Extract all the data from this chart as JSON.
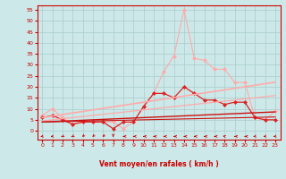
{
  "xlabel": "Vent moyen/en rafales ( km/h )",
  "bg_color": "#cce8e8",
  "grid_color": "#aacccc",
  "x_ticks": [
    0,
    1,
    2,
    3,
    4,
    5,
    6,
    7,
    8,
    9,
    10,
    11,
    12,
    13,
    14,
    15,
    16,
    17,
    18,
    19,
    20,
    21,
    22,
    23
  ],
  "ylim": [
    -4,
    57
  ],
  "yticks": [
    0,
    5,
    10,
    15,
    20,
    25,
    30,
    35,
    40,
    45,
    50,
    55
  ],
  "series": [
    {
      "color": "#ffaaaa",
      "linewidth": 0.8,
      "marker": "D",
      "markersize": 2.0,
      "values": [
        7,
        10,
        6,
        3,
        4,
        4,
        4,
        4,
        1,
        4,
        11,
        17,
        27,
        34,
        55,
        33,
        32,
        28,
        28,
        22,
        22,
        6,
        5,
        9
      ]
    },
    {
      "color": "#dd2222",
      "linewidth": 0.9,
      "marker": "D",
      "markersize": 2.0,
      "values": [
        6,
        7,
        5,
        3,
        4,
        4,
        4,
        1,
        4,
        4,
        11,
        17,
        17,
        15,
        20,
        17,
        14,
        14,
        12,
        13,
        13,
        6,
        5,
        5
      ]
    },
    {
      "color": "#ffaaaa",
      "linewidth": 1.2,
      "marker": null,
      "values": [
        6.0,
        6.7,
        7.4,
        8.1,
        8.8,
        9.5,
        10.2,
        10.9,
        11.6,
        12.3,
        13.0,
        13.7,
        14.4,
        15.1,
        15.8,
        16.5,
        17.2,
        17.9,
        18.6,
        19.3,
        20.0,
        20.7,
        21.4,
        22.1
      ]
    },
    {
      "color": "#ffaaaa",
      "linewidth": 0.9,
      "marker": null,
      "values": [
        4.5,
        5.0,
        5.5,
        6.0,
        6.5,
        7.0,
        7.5,
        8.0,
        8.5,
        9.0,
        9.5,
        10.0,
        10.5,
        11.0,
        11.5,
        12.0,
        12.5,
        13.0,
        13.5,
        14.0,
        14.5,
        15.0,
        15.5,
        16.0
      ]
    },
    {
      "color": "#cc1111",
      "linewidth": 1.0,
      "marker": null,
      "values": [
        4.0,
        4.2,
        4.4,
        4.6,
        4.8,
        5.0,
        5.2,
        5.4,
        5.6,
        5.8,
        6.0,
        6.2,
        6.4,
        6.6,
        6.8,
        7.0,
        7.2,
        7.4,
        7.6,
        7.8,
        8.0,
        8.2,
        8.4,
        8.6
      ]
    },
    {
      "color": "#cc1111",
      "linewidth": 0.8,
      "marker": null,
      "values": [
        4.0,
        4.1,
        4.2,
        4.3,
        4.4,
        4.5,
        4.6,
        4.7,
        4.8,
        4.9,
        5.0,
        5.1,
        5.2,
        5.3,
        5.4,
        5.5,
        5.6,
        5.7,
        5.8,
        5.9,
        6.0,
        6.1,
        6.2,
        6.3
      ]
    }
  ],
  "arrow_angles": [
    225,
    225,
    210,
    210,
    195,
    195,
    195,
    180,
    270,
    270,
    270,
    270,
    270,
    270,
    270,
    270,
    270,
    270,
    315,
    270,
    270,
    225,
    225,
    225
  ],
  "title_color": "#cc0000",
  "axis_color": "#cc0000",
  "tick_color": "#cc0000"
}
